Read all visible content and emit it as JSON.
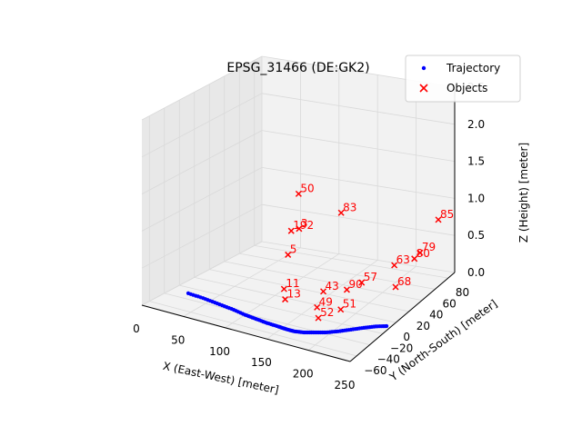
{
  "chart_data": {
    "type": "scatter",
    "title": "EPSG_31466 (DE:GK2)",
    "xlabel": "X (East-West) [meter]",
    "ylabel": "Y (North-South) [meter]",
    "zlabel": "Z (Height) [meter]",
    "xlim": [
      0,
      250
    ],
    "ylim": [
      -70,
      90
    ],
    "zlim": [
      0,
      2.5
    ],
    "x_ticks": [
      "0",
      "50",
      "100",
      "150",
      "200",
      "250"
    ],
    "y_ticks": [
      "−60",
      "−40",
      "−20",
      "0",
      "20",
      "40",
      "60",
      "80"
    ],
    "z_ticks": [
      "0.0",
      "0.5",
      "1.0",
      "1.5",
      "2.0",
      "2.5"
    ],
    "grid": true,
    "legend_position": "top-right",
    "colors": {
      "trajectory": "#0000ff",
      "objects": "#ff0000",
      "pane": "#f2f2f2",
      "grid": "#d9d9d9"
    },
    "series": [
      {
        "name": "Trajectory",
        "marker": "dot",
        "points": [
          [
            20,
            -30,
            0
          ],
          [
            40,
            -32,
            0
          ],
          [
            60,
            -35,
            0
          ],
          [
            80,
            -38,
            0
          ],
          [
            100,
            -42,
            0
          ],
          [
            115,
            -44,
            0
          ],
          [
            130,
            -46,
            0
          ],
          [
            145,
            -47,
            0
          ],
          [
            155,
            -48,
            0
          ],
          [
            165,
            -48,
            0
          ],
          [
            175,
            -46,
            0
          ],
          [
            185,
            -42,
            0
          ],
          [
            195,
            -38,
            0
          ],
          [
            205,
            -32,
            0
          ],
          [
            215,
            -25,
            0
          ],
          [
            225,
            -18,
            0
          ],
          [
            235,
            -12,
            0
          ],
          [
            245,
            -8,
            0
          ]
        ]
      },
      {
        "name": "Objects",
        "marker": "x",
        "points": [
          {
            "label": "50",
            "x": 125,
            "y": 5,
            "z": 1.4
          },
          {
            "label": "85",
            "x": 250,
            "y": 65,
            "z": 0.9
          },
          {
            "label": "79",
            "x": 235,
            "y": 55,
            "z": 0.5
          },
          {
            "label": "80",
            "x": 232,
            "y": 50,
            "z": 0.45
          },
          {
            "label": "63",
            "x": 215,
            "y": 40,
            "z": 0.4
          },
          {
            "label": "68",
            "x": 225,
            "y": 30,
            "z": 0.2
          },
          {
            "label": "57",
            "x": 195,
            "y": 15,
            "z": 0.3
          },
          {
            "label": "90",
            "x": 185,
            "y": 5,
            "z": 0.25
          },
          {
            "label": "51",
            "x": 190,
            "y": -10,
            "z": 0.1
          },
          {
            "label": "52",
            "x": 175,
            "y": -25,
            "z": 0.05
          },
          {
            "label": "49",
            "x": 165,
            "y": -15,
            "z": 0.1
          },
          {
            "label": "43",
            "x": 160,
            "y": 0,
            "z": 0.2
          },
          {
            "label": "13",
            "x": 130,
            "y": -20,
            "z": 0.15
          },
          {
            "label": "11",
            "x": 120,
            "y": -10,
            "z": 0.2
          },
          {
            "label": "83",
            "x": 130,
            "y": 60,
            "z": 0.8
          },
          {
            "label": "3",
            "x": 90,
            "y": 45,
            "z": 0.6
          },
          {
            "label": "5",
            "x": 85,
            "y": 35,
            "z": 0.3
          },
          {
            "label": "192",
            "x": 80,
            "y": 45,
            "z": 0.55
          }
        ]
      }
    ]
  }
}
